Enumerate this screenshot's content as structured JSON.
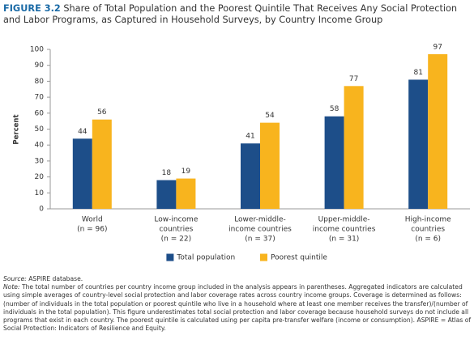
{
  "chart_data": {
    "type": "bar",
    "figure_label": "FIGURE 3.2",
    "title": "Share of Total Population and the Poorest Quintile That Receives Any Social Protection and Labor Programs, as Captured in Household Surveys, by Country Income Group",
    "y_label": "Percent",
    "categories": [
      [
        "World",
        "(n = 96)"
      ],
      [
        "Low-income",
        "countries",
        "(n = 22)"
      ],
      [
        "Lower-middle-",
        "income countries",
        "(n = 37)"
      ],
      [
        "Upper-middle-",
        "income countries",
        "(n = 31)"
      ],
      [
        "High-income",
        "countries",
        "(n = 6)"
      ]
    ],
    "series": [
      {
        "name": "Total population",
        "color": "#1d4e89",
        "values": [
          44,
          18,
          41,
          58,
          81
        ]
      },
      {
        "name": "Poorest quintile",
        "color": "#f8b41e",
        "values": [
          56,
          19,
          54,
          77,
          97
        ]
      }
    ],
    "ylim": [
      0,
      100
    ],
    "yticks": [
      0,
      10,
      20,
      30,
      40,
      50,
      60,
      70,
      80,
      90,
      100
    ],
    "legend": "bottom",
    "source_label": "Source:",
    "source": "ASPIRE database.",
    "note_label": "Note:",
    "note": "The total number of countries per country income group included in the analysis appears in parentheses. Aggregated indicators are calculated using simple averages of country-level social protection and labor coverage rates across country income groups. Coverage is determined as follows: (number of individuals in the total population or poorest quintile who live in a household where at least one member receives the transfer)/(number of individuals in the total population). This figure underestimates total social protection and labor coverage because household surveys do not include all programs that exist in each country. The poorest quintile is calculated using per capita pre-transfer welfare (income or consumption). ASPIRE = Atlas of Social Protection: Indicators of Resilience and Equity."
  }
}
